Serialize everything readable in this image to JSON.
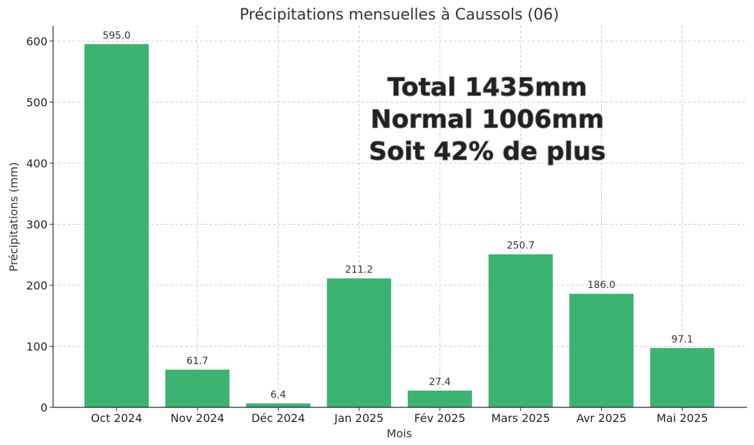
{
  "chart_data": {
    "type": "bar",
    "title": "Précipitations mensuelles à Caussols (06)",
    "xlabel": "Mois",
    "ylabel": "Précipitations (mm)",
    "categories": [
      "Oct 2024",
      "Nov 2024",
      "Déc 2024",
      "Jan 2025",
      "Fév 2025",
      "Mars 2025",
      "Avr 2025",
      "Mai 2025"
    ],
    "values": [
      595.0,
      61.7,
      6.4,
      211.2,
      27.4,
      250.7,
      186.0,
      97.1
    ],
    "value_labels": [
      "595.0",
      "61.7",
      "6.4",
      "211.2",
      "27.4",
      "250.7",
      "186.0",
      "97.1"
    ],
    "ylim": [
      0,
      625
    ],
    "yticks": [
      0,
      100,
      200,
      300,
      400,
      500,
      600
    ],
    "grid": true,
    "bar_color": "#3cb371",
    "annotations": [
      "Total 1435mm",
      "Normal 1006mm",
      "Soit 42% de plus"
    ]
  }
}
